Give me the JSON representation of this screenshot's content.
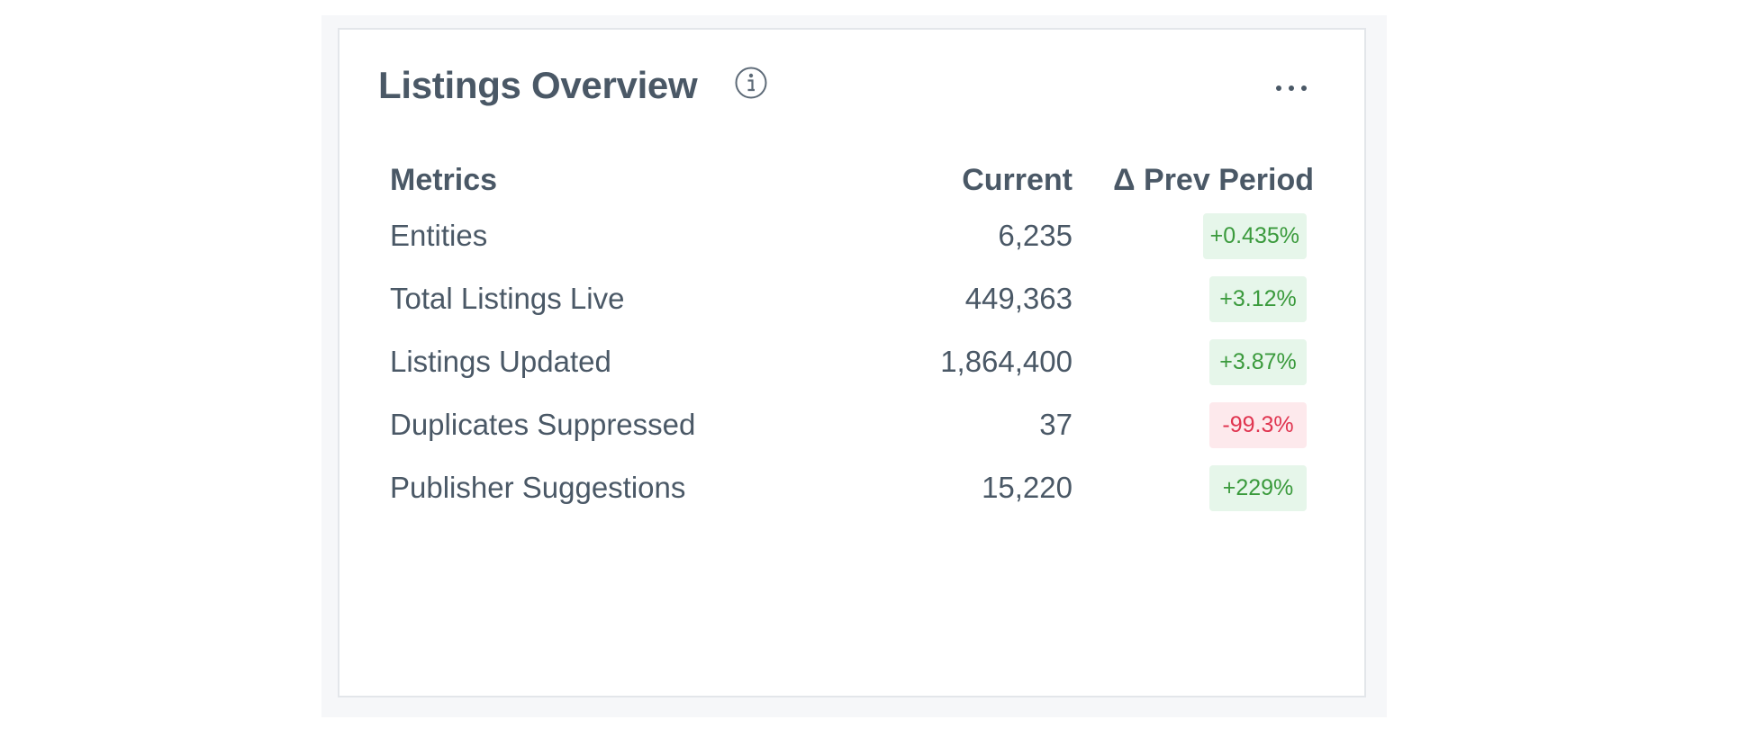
{
  "widget": {
    "title": "Listings Overview",
    "info_icon": "info-circle-icon",
    "more_icon": "more-horizontal-icon"
  },
  "table": {
    "headers": {
      "metric": "Metrics",
      "current": "Current",
      "delta": "Δ Prev Period"
    },
    "rows": [
      {
        "metric": "Entities",
        "current": "6,235",
        "delta": "+0.435%",
        "trend": "up"
      },
      {
        "metric": "Total Listings Live",
        "current": "449,363",
        "delta": "+3.12%",
        "trend": "up"
      },
      {
        "metric": "Listings Updated",
        "current": "1,864,400",
        "delta": "+3.87%",
        "trend": "up"
      },
      {
        "metric": "Duplicates Suppressed",
        "current": "37",
        "delta": "-99.3%",
        "trend": "down"
      },
      {
        "metric": "Publisher Suggestions",
        "current": "15,220",
        "delta": "+229%",
        "trend": "up"
      }
    ]
  },
  "colors": {
    "positive_text": "#3a9a3c",
    "positive_bg": "#e6f6ea",
    "negative_text": "#e0344f",
    "negative_bg": "#fde9ec",
    "text": "#4a5866"
  }
}
